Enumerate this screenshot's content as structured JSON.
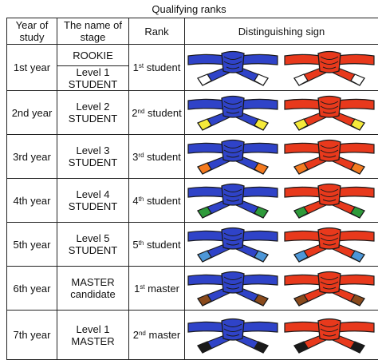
{
  "title": "Qualifying ranks",
  "headers": {
    "year": "Year of study",
    "stage": "The name of stage",
    "rank": "Rank",
    "sign": "Distinguishing sign"
  },
  "colors": {
    "blue": "#2f43c8",
    "red": "#e8391c",
    "outline": "#1a1a1a"
  },
  "rows": [
    {
      "year": "1st year",
      "stages": [
        "ROOKIE",
        "Level 1 STUDENT"
      ],
      "rank_num": "1",
      "rank_sup": "st",
      "rank_word": "student",
      "tip_color": "#ffffff"
    },
    {
      "year": "2nd year",
      "stages": [
        "Level 2 STUDENT"
      ],
      "rank_num": "2",
      "rank_sup": "nd",
      "rank_word": "student",
      "tip_color": "#f5ea3a"
    },
    {
      "year": "3rd year",
      "stages": [
        "Level 3 STUDENT"
      ],
      "rank_num": "3",
      "rank_sup": "rd",
      "rank_word": "student",
      "tip_color": "#f47a1f"
    },
    {
      "year": "4th year",
      "stages": [
        "Level 4 STUDENT"
      ],
      "rank_num": "4",
      "rank_sup": "th",
      "rank_word": "student",
      "tip_color": "#2e9a3a"
    },
    {
      "year": "5th year",
      "stages": [
        "Level 5 STUDENT"
      ],
      "rank_num": "5",
      "rank_sup": "th",
      "rank_word": "student",
      "tip_color": "#4d97d8"
    },
    {
      "year": "6th year",
      "stages": [
        "MASTER candidate"
      ],
      "rank_num": "1",
      "rank_sup": "st",
      "rank_word": "master",
      "tip_color": "#8a4a1c"
    },
    {
      "year": "7th year",
      "stages": [
        "Level 1 MASTER"
      ],
      "rank_num": "2",
      "rank_sup": "nd",
      "rank_word": "master",
      "tip_color": "#1a1a1a"
    }
  ]
}
